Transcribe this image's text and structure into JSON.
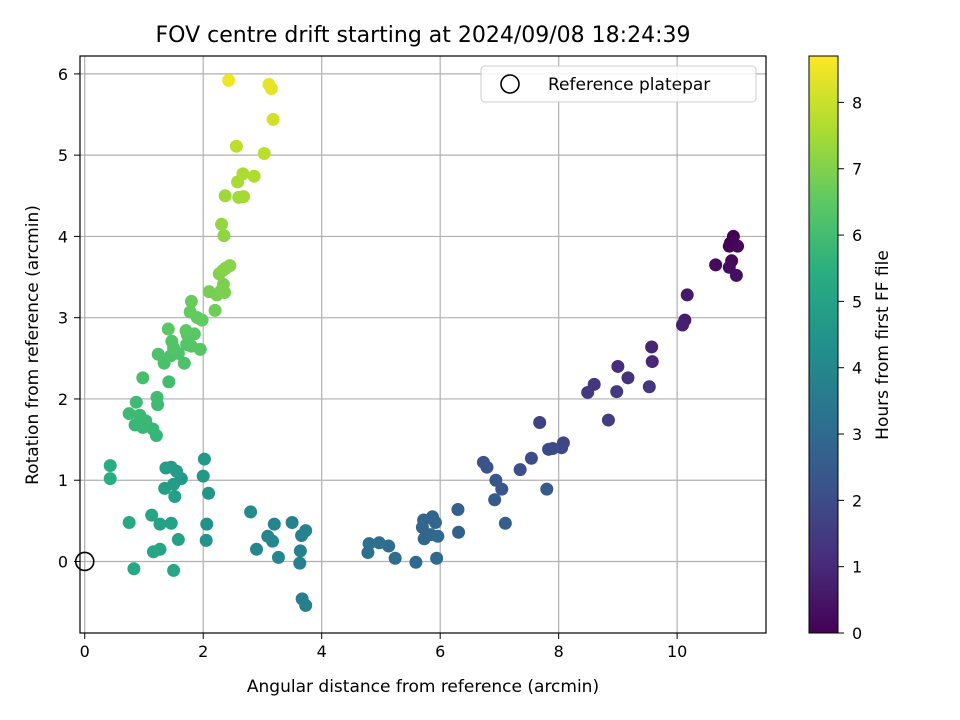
{
  "chart_data": {
    "type": "scatter",
    "title": "FOV centre drift starting at 2024/09/08 18:24:39",
    "xlabel": "Angular distance from reference (arcmin)",
    "ylabel": "Rotation from reference (arcmin)",
    "xlim": [
      -0.08,
      11.5
    ],
    "ylim": [
      -0.88,
      6.22
    ],
    "xticks": [
      "0",
      "2",
      "4",
      "6",
      "8",
      "10"
    ],
    "yticks": [
      "0",
      "1",
      "2",
      "3",
      "4",
      "5",
      "6"
    ],
    "grid": true,
    "legend": {
      "placement": "top-right",
      "entries": [
        "Reference platepar"
      ]
    },
    "reference_point": {
      "x": 0,
      "y": 0
    },
    "colorbar": {
      "label": "Hours from first FF file",
      "colormap": "viridis",
      "range": [
        0,
        8.7
      ],
      "ticks": [
        "0",
        "1",
        "2",
        "3",
        "4",
        "5",
        "6",
        "7",
        "8"
      ]
    },
    "points": [
      {
        "x": 10.95,
        "y": 4.0,
        "t": 0.0
      },
      {
        "x": 10.9,
        "y": 3.92,
        "t": 0.05
      },
      {
        "x": 10.88,
        "y": 3.88,
        "t": 0.1
      },
      {
        "x": 11.02,
        "y": 3.88,
        "t": 0.15
      },
      {
        "x": 10.92,
        "y": 3.7,
        "t": 0.2
      },
      {
        "x": 10.65,
        "y": 3.65,
        "t": 0.25
      },
      {
        "x": 10.88,
        "y": 3.62,
        "t": 0.3
      },
      {
        "x": 11.0,
        "y": 3.52,
        "t": 0.35
      },
      {
        "x": 10.17,
        "y": 3.28,
        "t": 0.6
      },
      {
        "x": 10.13,
        "y": 2.97,
        "t": 0.7
      },
      {
        "x": 10.09,
        "y": 2.91,
        "t": 0.75
      },
      {
        "x": 9.57,
        "y": 2.64,
        "t": 0.9
      },
      {
        "x": 9.58,
        "y": 2.46,
        "t": 1.0
      },
      {
        "x": 9.0,
        "y": 2.4,
        "t": 1.1
      },
      {
        "x": 9.17,
        "y": 2.26,
        "t": 1.2
      },
      {
        "x": 8.6,
        "y": 2.18,
        "t": 1.3
      },
      {
        "x": 9.53,
        "y": 2.15,
        "t": 1.35
      },
      {
        "x": 8.98,
        "y": 2.09,
        "t": 1.4
      },
      {
        "x": 8.49,
        "y": 2.08,
        "t": 1.45
      },
      {
        "x": 8.84,
        "y": 1.74,
        "t": 1.6
      },
      {
        "x": 7.68,
        "y": 1.71,
        "t": 1.7
      },
      {
        "x": 8.08,
        "y": 1.46,
        "t": 1.8
      },
      {
        "x": 8.05,
        "y": 1.4,
        "t": 1.85
      },
      {
        "x": 7.83,
        "y": 1.38,
        "t": 1.9
      },
      {
        "x": 7.9,
        "y": 1.39,
        "t": 1.95
      },
      {
        "x": 7.54,
        "y": 1.27,
        "t": 2.0
      },
      {
        "x": 7.35,
        "y": 1.13,
        "t": 2.1
      },
      {
        "x": 6.73,
        "y": 1.22,
        "t": 2.2
      },
      {
        "x": 6.79,
        "y": 1.16,
        "t": 2.25
      },
      {
        "x": 6.94,
        "y": 1.0,
        "t": 2.3
      },
      {
        "x": 7.04,
        "y": 0.89,
        "t": 2.35
      },
      {
        "x": 7.8,
        "y": 0.89,
        "t": 2.4
      },
      {
        "x": 6.92,
        "y": 0.76,
        "t": 2.45
      },
      {
        "x": 7.1,
        "y": 0.47,
        "t": 2.55
      },
      {
        "x": 6.3,
        "y": 0.64,
        "t": 2.65
      },
      {
        "x": 6.31,
        "y": 0.36,
        "t": 2.7
      },
      {
        "x": 5.87,
        "y": 0.55,
        "t": 2.8
      },
      {
        "x": 5.72,
        "y": 0.51,
        "t": 2.82
      },
      {
        "x": 5.92,
        "y": 0.48,
        "t": 2.84
      },
      {
        "x": 5.7,
        "y": 0.42,
        "t": 2.86
      },
      {
        "x": 5.73,
        "y": 0.28,
        "t": 2.88
      },
      {
        "x": 5.84,
        "y": 0.33,
        "t": 2.9
      },
      {
        "x": 5.96,
        "y": 0.31,
        "t": 2.92
      },
      {
        "x": 5.94,
        "y": 0.04,
        "t": 2.95
      },
      {
        "x": 5.59,
        "y": -0.01,
        "t": 3.0
      },
      {
        "x": 5.24,
        "y": 0.04,
        "t": 3.05
      },
      {
        "x": 5.13,
        "y": 0.19,
        "t": 3.1
      },
      {
        "x": 4.97,
        "y": 0.23,
        "t": 3.12
      },
      {
        "x": 4.8,
        "y": 0.22,
        "t": 3.15
      },
      {
        "x": 4.78,
        "y": 0.11,
        "t": 3.18
      },
      {
        "x": 3.73,
        "y": -0.54,
        "t": 3.7
      },
      {
        "x": 3.67,
        "y": -0.46,
        "t": 3.72
      },
      {
        "x": 3.63,
        "y": -0.02,
        "t": 3.75
      },
      {
        "x": 3.64,
        "y": 0.13,
        "t": 3.78
      },
      {
        "x": 3.66,
        "y": 0.32,
        "t": 3.8
      },
      {
        "x": 3.73,
        "y": 0.38,
        "t": 3.82
      },
      {
        "x": 3.5,
        "y": 0.48,
        "t": 3.85
      },
      {
        "x": 3.2,
        "y": 0.46,
        "t": 3.9
      },
      {
        "x": 3.27,
        "y": 0.05,
        "t": 3.92
      },
      {
        "x": 3.09,
        "y": 0.31,
        "t": 3.95
      },
      {
        "x": 3.17,
        "y": 0.25,
        "t": 3.97
      },
      {
        "x": 2.9,
        "y": 0.15,
        "t": 4.0
      },
      {
        "x": 2.8,
        "y": 0.61,
        "t": 4.1
      },
      {
        "x": 2.06,
        "y": 0.46,
        "t": 4.4
      },
      {
        "x": 2.05,
        "y": 0.26,
        "t": 4.45
      },
      {
        "x": 2.09,
        "y": 0.84,
        "t": 4.55
      },
      {
        "x": 2.0,
        "y": 1.05,
        "t": 4.6
      },
      {
        "x": 2.02,
        "y": 1.26,
        "t": 4.65
      },
      {
        "x": 1.63,
        "y": 1.02,
        "t": 4.7
      },
      {
        "x": 1.5,
        "y": 0.95,
        "t": 4.75
      },
      {
        "x": 1.55,
        "y": 1.11,
        "t": 4.78
      },
      {
        "x": 1.46,
        "y": 1.16,
        "t": 4.8
      },
      {
        "x": 1.37,
        "y": 1.15,
        "t": 4.82
      },
      {
        "x": 1.35,
        "y": 0.9,
        "t": 4.85
      },
      {
        "x": 1.52,
        "y": 0.8,
        "t": 4.9
      },
      {
        "x": 1.27,
        "y": 0.46,
        "t": 4.95
      },
      {
        "x": 1.46,
        "y": 0.47,
        "t": 4.97
      },
      {
        "x": 1.58,
        "y": 0.27,
        "t": 5.0
      },
      {
        "x": 1.13,
        "y": 0.57,
        "t": 5.05
      },
      {
        "x": 1.27,
        "y": 0.15,
        "t": 5.1
      },
      {
        "x": 1.16,
        "y": 0.12,
        "t": 5.12
      },
      {
        "x": 1.5,
        "y": -0.11,
        "t": 5.15
      },
      {
        "x": 0.83,
        "y": -0.09,
        "t": 5.2
      },
      {
        "x": 0.75,
        "y": 0.48,
        "t": 5.25
      },
      {
        "x": 0.43,
        "y": 1.02,
        "t": 5.4
      },
      {
        "x": 0.43,
        "y": 1.18,
        "t": 5.45
      },
      {
        "x": 1.21,
        "y": 1.55,
        "t": 5.7
      },
      {
        "x": 1.15,
        "y": 1.63,
        "t": 5.75
      },
      {
        "x": 0.98,
        "y": 1.65,
        "t": 5.78
      },
      {
        "x": 0.85,
        "y": 1.68,
        "t": 5.8
      },
      {
        "x": 1.03,
        "y": 1.73,
        "t": 5.82
      },
      {
        "x": 0.93,
        "y": 1.8,
        "t": 5.85
      },
      {
        "x": 0.75,
        "y": 1.82,
        "t": 5.88
      },
      {
        "x": 0.87,
        "y": 1.96,
        "t": 5.9
      },
      {
        "x": 1.23,
        "y": 1.93,
        "t": 5.92
      },
      {
        "x": 1.22,
        "y": 2.02,
        "t": 5.95
      },
      {
        "x": 1.42,
        "y": 2.21,
        "t": 6.0
      },
      {
        "x": 0.98,
        "y": 2.26,
        "t": 6.05
      },
      {
        "x": 1.34,
        "y": 2.44,
        "t": 6.15
      },
      {
        "x": 1.68,
        "y": 2.44,
        "t": 6.18
      },
      {
        "x": 1.24,
        "y": 2.55,
        "t": 6.2
      },
      {
        "x": 1.45,
        "y": 2.53,
        "t": 6.22
      },
      {
        "x": 1.58,
        "y": 2.56,
        "t": 6.25
      },
      {
        "x": 1.5,
        "y": 2.63,
        "t": 6.27
      },
      {
        "x": 1.47,
        "y": 2.71,
        "t": 6.3
      },
      {
        "x": 1.72,
        "y": 2.67,
        "t": 6.32
      },
      {
        "x": 1.8,
        "y": 2.65,
        "t": 6.35
      },
      {
        "x": 1.95,
        "y": 2.61,
        "t": 6.38
      },
      {
        "x": 1.73,
        "y": 2.79,
        "t": 6.4
      },
      {
        "x": 1.85,
        "y": 2.8,
        "t": 6.42
      },
      {
        "x": 1.41,
        "y": 2.86,
        "t": 6.45
      },
      {
        "x": 1.71,
        "y": 2.84,
        "t": 6.47
      },
      {
        "x": 1.9,
        "y": 3.0,
        "t": 6.55
      },
      {
        "x": 1.98,
        "y": 2.97,
        "t": 6.57
      },
      {
        "x": 1.78,
        "y": 3.07,
        "t": 6.6
      },
      {
        "x": 1.8,
        "y": 3.2,
        "t": 6.65
      },
      {
        "x": 2.2,
        "y": 3.09,
        "t": 6.75
      },
      {
        "x": 2.1,
        "y": 3.32,
        "t": 6.85
      },
      {
        "x": 2.23,
        "y": 3.28,
        "t": 6.87
      },
      {
        "x": 2.3,
        "y": 3.33,
        "t": 6.9
      },
      {
        "x": 2.36,
        "y": 3.31,
        "t": 6.92
      },
      {
        "x": 2.34,
        "y": 3.41,
        "t": 6.95
      },
      {
        "x": 2.27,
        "y": 3.54,
        "t": 7.0
      },
      {
        "x": 2.33,
        "y": 3.58,
        "t": 7.05
      },
      {
        "x": 2.38,
        "y": 3.61,
        "t": 7.08
      },
      {
        "x": 2.45,
        "y": 3.64,
        "t": 7.1
      },
      {
        "x": 2.35,
        "y": 4.01,
        "t": 7.2
      },
      {
        "x": 2.31,
        "y": 4.15,
        "t": 7.25
      },
      {
        "x": 2.37,
        "y": 4.5,
        "t": 7.4
      },
      {
        "x": 2.6,
        "y": 4.48,
        "t": 7.45
      },
      {
        "x": 2.68,
        "y": 4.49,
        "t": 7.5
      },
      {
        "x": 2.58,
        "y": 4.67,
        "t": 7.55
      },
      {
        "x": 2.67,
        "y": 4.77,
        "t": 7.6
      },
      {
        "x": 2.86,
        "y": 4.74,
        "t": 7.65
      },
      {
        "x": 3.03,
        "y": 5.02,
        "t": 7.8
      },
      {
        "x": 2.56,
        "y": 5.11,
        "t": 7.85
      },
      {
        "x": 3.18,
        "y": 5.44,
        "t": 8.1
      },
      {
        "x": 3.15,
        "y": 5.82,
        "t": 8.35
      },
      {
        "x": 3.11,
        "y": 5.87,
        "t": 8.4
      },
      {
        "x": 2.43,
        "y": 5.92,
        "t": 8.5
      }
    ]
  }
}
